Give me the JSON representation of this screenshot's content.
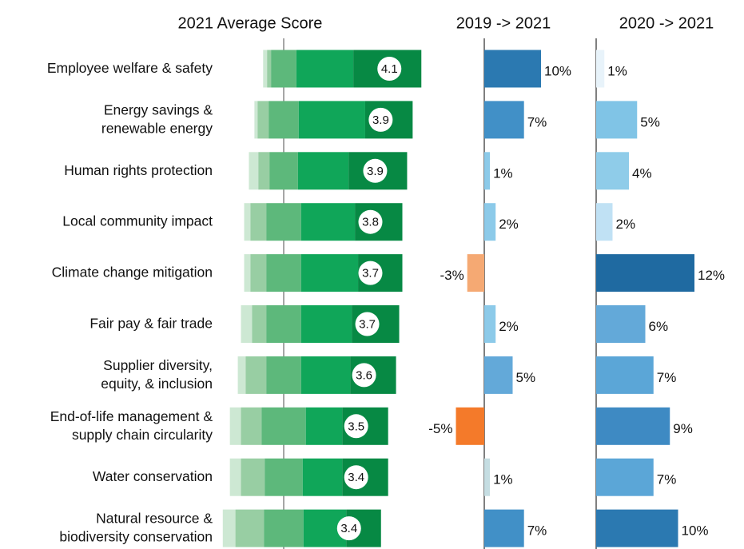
{
  "chart_data": [
    {
      "type": "diverging_stacked_bar",
      "title": "2021 Average Score",
      "categories": [
        [
          "Employee welfare & safety"
        ],
        [
          "Energy savings &",
          "renewable energy"
        ],
        [
          "Human rights protection"
        ],
        [
          "Local community impact"
        ],
        [
          "Climate change mitigation"
        ],
        [
          "Fair pay & fair trade"
        ],
        [
          "Supplier diversity,",
          "equity, & inclusion"
        ],
        [
          "End-of-life management &",
          "supply chain circularity"
        ],
        [
          "Water conservation"
        ],
        [
          "Natural resource &",
          "biodiversity conservation"
        ]
      ],
      "series": [
        {
          "color": "#cde8d3",
          "values": [
            2.5,
            2,
            6,
            4,
            4,
            7,
            5,
            7,
            7,
            8
          ]
        },
        {
          "color": "#98cea3",
          "values": [
            2.5,
            7,
            7,
            10,
            10,
            9,
            13,
            13,
            15,
            18
          ]
        },
        {
          "color": "#5db87b",
          "values": [
            16,
            19,
            18,
            22,
            22,
            22,
            22,
            28,
            24,
            25
          ]
        },
        {
          "color": "#10a659",
          "values": [
            36,
            42,
            32,
            34,
            36,
            32,
            31,
            23,
            25,
            27
          ]
        },
        {
          "color": "#078944",
          "values": [
            43,
            30,
            37,
            30,
            28,
            30,
            29,
            29,
            29,
            22
          ]
        }
      ],
      "scores": [
        4.1,
        3.9,
        3.9,
        3.8,
        3.7,
        3.7,
        3.6,
        3.5,
        3.4,
        3.4
      ]
    },
    {
      "type": "change_bar",
      "title": "2019 -> 2021",
      "values": [
        10,
        7,
        1,
        2,
        -3,
        2,
        5,
        -5,
        1,
        7
      ],
      "value_labels": [
        "10%",
        "7%",
        "1%",
        "2%",
        "-3%",
        "2%",
        "5%",
        "-5%",
        "1%",
        "7%"
      ],
      "colors": [
        "#2b79b1",
        "#4190c7",
        "#8ccae9",
        "#8ccae9",
        "#f5a973",
        "#8ccae9",
        "#63a9d9",
        "#f47a2a",
        "#c5dde2",
        "#4190c7"
      ]
    },
    {
      "type": "change_bar",
      "title": "2020 -> 2021",
      "values": [
        1,
        5,
        4,
        2,
        12,
        6,
        7,
        9,
        7,
        10
      ],
      "value_labels": [
        "1%",
        "5%",
        "4%",
        "2%",
        "12%",
        "6%",
        "7%",
        "9%",
        "7%",
        "10%"
      ],
      "colors": [
        "#e8f3fa",
        "#80c4e6",
        "#8fcce9",
        "#c0e1f4",
        "#1f6aa1",
        "#63a9d9",
        "#5ba6d7",
        "#3e8ac3",
        "#5ba6d7",
        "#2b79b1"
      ]
    }
  ]
}
